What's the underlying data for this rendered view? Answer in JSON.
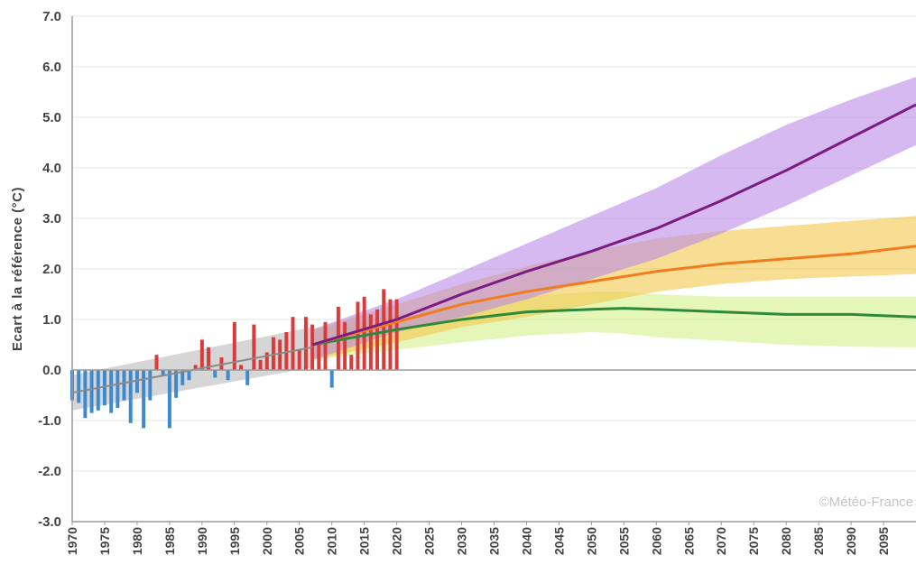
{
  "chart_data": {
    "type": "bar",
    "title": "",
    "ylabel": "Ecart à la référence (°C)",
    "credit": "©Météo-France",
    "ylim": [
      -3.0,
      7.0
    ],
    "xlim": [
      1970,
      2100
    ],
    "y_ticks": [
      "7.0",
      "6.0",
      "5.0",
      "4.0",
      "3.0",
      "2.0",
      "1.0",
      "0.0",
      "-1.0",
      "-2.0",
      "-3.0"
    ],
    "y_tick_values": [
      7,
      6,
      5,
      4,
      3,
      2,
      1,
      0,
      -1,
      -2,
      -3
    ],
    "x_ticks": [
      "1970",
      "1975",
      "1980",
      "1985",
      "1990",
      "1995",
      "2000",
      "2005",
      "2010",
      "2015",
      "2020",
      "2025",
      "2030",
      "2035",
      "2040",
      "2045",
      "2050",
      "2055",
      "2060",
      "2065",
      "2070",
      "2075",
      "2080",
      "2085",
      "2090",
      "2095"
    ],
    "grid": true,
    "colors": {
      "positive_bar": "#d93a3a",
      "negative_bar": "#3e8ad0",
      "historical_band": "#c8c8c8",
      "high_line": "#7a1c82",
      "high_band": "#b98ae6",
      "mid_line": "#f07c1e",
      "mid_band": "#f3c84a",
      "low_line": "#2e8a3a",
      "low_band": "#d3f08a",
      "grid": "#e4e4e4",
      "zero_line": "#9a9a9a"
    },
    "annual_anomalies": {
      "years": [
        1970,
        1971,
        1972,
        1973,
        1974,
        1975,
        1976,
        1977,
        1978,
        1979,
        1980,
        1981,
        1982,
        1983,
        1984,
        1985,
        1986,
        1987,
        1988,
        1989,
        1990,
        1991,
        1992,
        1993,
        1994,
        1995,
        1996,
        1997,
        1998,
        1999,
        2000,
        2001,
        2002,
        2003,
        2004,
        2005,
        2006,
        2007,
        2008,
        2009,
        2010,
        2011,
        2012,
        2013,
        2014,
        2015,
        2016,
        2017,
        2018,
        2019,
        2020
      ],
      "values": [
        -0.6,
        -0.65,
        -0.95,
        -0.85,
        -0.8,
        -0.7,
        -0.85,
        -0.75,
        -0.6,
        -1.05,
        -0.45,
        -1.15,
        -0.6,
        0.3,
        -0.1,
        -1.15,
        -0.55,
        -0.3,
        -0.2,
        0.1,
        0.6,
        0.45,
        -0.15,
        0.25,
        -0.2,
        0.95,
        0.1,
        -0.3,
        0.9,
        0.2,
        0.35,
        0.65,
        0.6,
        0.75,
        1.05,
        0.4,
        1.05,
        0.9,
        0.55,
        0.95,
        -0.35,
        1.25,
        0.95,
        0.3,
        1.35,
        1.45,
        1.1,
        1.2,
        1.6,
        1.4,
        1.4
      ]
    },
    "historical_trend": {
      "x": [
        1970,
        2007
      ],
      "y": [
        -0.45,
        0.45
      ],
      "band_lower": [
        -0.8,
        0.05
      ],
      "band_upper": [
        -0.1,
        0.85
      ]
    },
    "series": [
      {
        "key": "high",
        "x": [
          2007,
          2020,
          2030,
          2040,
          2050,
          2060,
          2070,
          2080,
          2090,
          2100
        ],
        "y": [
          0.5,
          1.0,
          1.5,
          1.95,
          2.35,
          2.8,
          3.35,
          3.95,
          4.6,
          5.25
        ],
        "lower": [
          0.2,
          0.75,
          1.05,
          1.4,
          1.8,
          2.2,
          2.7,
          3.25,
          3.85,
          4.45
        ],
        "upper": [
          0.8,
          1.4,
          1.95,
          2.5,
          3.05,
          3.6,
          4.25,
          4.85,
          5.35,
          5.8
        ]
      },
      {
        "key": "mid",
        "x": [
          2007,
          2020,
          2030,
          2040,
          2050,
          2060,
          2070,
          2080,
          2090,
          2100
        ],
        "y": [
          0.5,
          0.95,
          1.3,
          1.55,
          1.75,
          1.95,
          2.1,
          2.2,
          2.3,
          2.45
        ],
        "lower": [
          0.2,
          0.55,
          0.85,
          1.05,
          1.3,
          1.55,
          1.7,
          1.8,
          1.85,
          1.9
        ],
        "upper": [
          0.8,
          1.3,
          1.7,
          2.05,
          2.35,
          2.6,
          2.75,
          2.85,
          2.95,
          3.05
        ]
      },
      {
        "key": "low",
        "x": [
          2007,
          2020,
          2030,
          2040,
          2050,
          2055,
          2060,
          2070,
          2080,
          2090,
          2100
        ],
        "y": [
          0.5,
          0.8,
          1.0,
          1.15,
          1.2,
          1.22,
          1.2,
          1.15,
          1.1,
          1.1,
          1.05
        ],
        "lower": [
          0.2,
          0.4,
          0.55,
          0.68,
          0.75,
          0.72,
          0.65,
          0.58,
          0.5,
          0.46,
          0.45
        ],
        "upper": [
          0.8,
          1.1,
          1.3,
          1.45,
          1.55,
          1.55,
          1.5,
          1.45,
          1.45,
          1.45,
          1.45
        ]
      }
    ]
  }
}
